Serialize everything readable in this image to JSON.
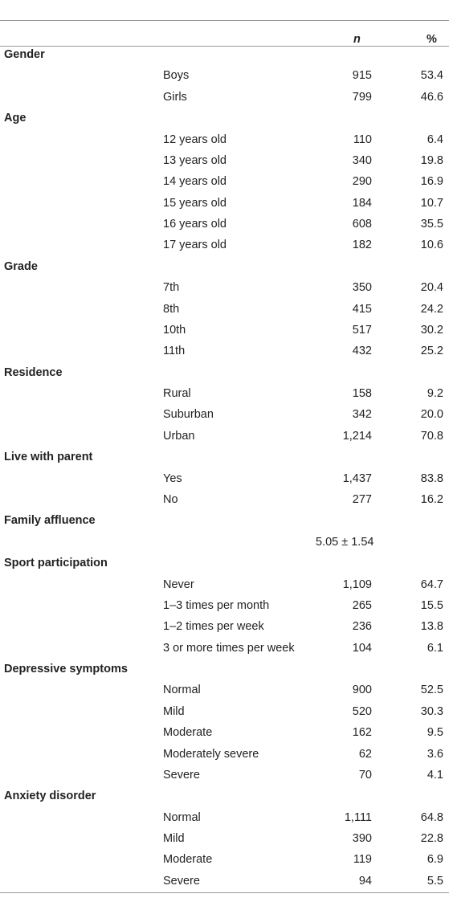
{
  "table": {
    "header": {
      "n": "n",
      "pct": "%"
    },
    "sections": [
      {
        "label": "Gender",
        "rows": [
          {
            "label": "Boys",
            "n": "915",
            "pct": "53.4"
          },
          {
            "label": "Girls",
            "n": "799",
            "pct": "46.6"
          }
        ]
      },
      {
        "label": "Age",
        "rows": [
          {
            "label": "12 years old",
            "n": "110",
            "pct": "6.4"
          },
          {
            "label": "13 years old",
            "n": "340",
            "pct": "19.8"
          },
          {
            "label": "14 years old",
            "n": "290",
            "pct": "16.9"
          },
          {
            "label": "15 years old",
            "n": "184",
            "pct": "10.7"
          },
          {
            "label": "16 years old",
            "n": "608",
            "pct": "35.5"
          },
          {
            "label": "17 years old",
            "n": "182",
            "pct": "10.6"
          }
        ]
      },
      {
        "label": "Grade",
        "rows": [
          {
            "label": "7th",
            "n": "350",
            "pct": "20.4"
          },
          {
            "label": "8th",
            "n": "415",
            "pct": "24.2"
          },
          {
            "label": "10th",
            "n": "517",
            "pct": "30.2"
          },
          {
            "label": "11th",
            "n": "432",
            "pct": "25.2"
          }
        ]
      },
      {
        "label": "Residence",
        "rows": [
          {
            "label": "Rural",
            "n": "158",
            "pct": "9.2"
          },
          {
            "label": "Suburban",
            "n": "342",
            "pct": "20.0"
          },
          {
            "label": "Urban",
            "n": "1,214",
            "pct": "70.8"
          }
        ]
      },
      {
        "label": "Live with parent",
        "rows": [
          {
            "label": "Yes",
            "n": "1,437",
            "pct": "83.8"
          },
          {
            "label": "No",
            "n": "277",
            "pct": "16.2"
          }
        ]
      },
      {
        "label": "Family affluence",
        "rows": [
          {
            "mean_sd": "5.05 ± 1.54"
          }
        ]
      },
      {
        "label": "Sport participation",
        "rows": [
          {
            "label": "Never",
            "n": "1,109",
            "pct": "64.7"
          },
          {
            "label": "1–3 times per month",
            "n": "265",
            "pct": "15.5"
          },
          {
            "label": "1–2 times per week",
            "n": "236",
            "pct": "13.8"
          },
          {
            "label": "3 or more times per week",
            "n": "104",
            "pct": "6.1"
          }
        ]
      },
      {
        "label": "Depressive symptoms",
        "rows": [
          {
            "label": "Normal",
            "n": "900",
            "pct": "52.5"
          },
          {
            "label": "Mild",
            "n": "520",
            "pct": "30.3"
          },
          {
            "label": "Moderate",
            "n": "162",
            "pct": "9.5"
          },
          {
            "label": "Moderately severe",
            "n": "62",
            "pct": "3.6"
          },
          {
            "label": "Severe",
            "n": "70",
            "pct": "4.1"
          }
        ]
      },
      {
        "label": "Anxiety disorder",
        "rows": [
          {
            "label": "Normal",
            "n": "1,111",
            "pct": "64.8"
          },
          {
            "label": "Mild",
            "n": "390",
            "pct": "22.8"
          },
          {
            "label": "Moderate",
            "n": "119",
            "pct": "6.9"
          },
          {
            "label": "Severe",
            "n": "94",
            "pct": "5.5"
          }
        ]
      }
    ]
  }
}
